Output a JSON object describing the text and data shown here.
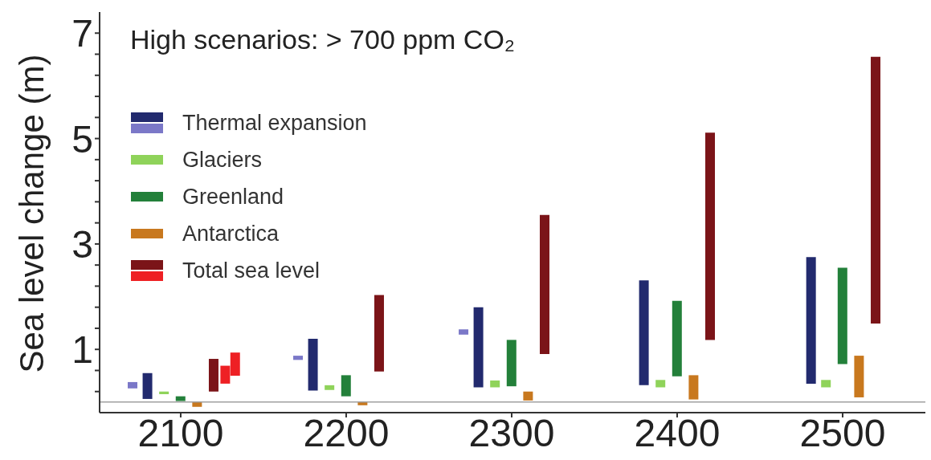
{
  "chart_data": {
    "type": "bar",
    "title": "High scenarios: > 700 ppm CO₂",
    "ylabel": "Sea level change (m)",
    "xlim": [
      2051,
      2550
    ],
    "xticks": [
      2100,
      2200,
      2300,
      2400,
      2500
    ],
    "ylim": [
      -0.2,
      7.4
    ],
    "yticks": [
      {
        "value": 0.2,
        "label": null
      },
      {
        "value": 0.6,
        "label": null
      },
      1,
      {
        "value": 1.4,
        "label": null
      },
      {
        "value": 1.8,
        "label": null
      },
      {
        "value": 2.2,
        "label": null
      },
      {
        "value": 2.6,
        "label": null
      },
      3,
      {
        "value": 3.4,
        "label": null
      },
      {
        "value": 3.8,
        "label": null
      },
      {
        "value": 4.2,
        "label": null
      },
      {
        "value": 4.6,
        "label": null
      },
      5,
      {
        "value": 5.4,
        "label": null
      },
      {
        "value": 5.8,
        "label": null
      },
      {
        "value": 6.2,
        "label": null
      },
      {
        "value": 6.6,
        "label": null
      },
      7
    ],
    "grid": false,
    "legend": "top left",
    "ref_lines": [
      {
        "axis": "y",
        "value": 0,
        "color": "#a0a0a0"
      }
    ],
    "series": [
      {
        "name": "Thermal expansion",
        "color": "#222a6e",
        "colors": [
          "#7b78c8",
          "#222a6e",
          "#7b78c8",
          "#222a6e",
          "#7b78c8",
          "#222a6e",
          "#222a6e",
          "#222a6e"
        ],
        "x": [
          2071,
          2080,
          2171,
          2180,
          2271,
          2280,
          2380,
          2481
        ],
        "base": [
          0.26,
          0.06,
          0.8,
          0.22,
          1.28,
          0.28,
          0.32,
          0.35
        ],
        "values": [
          0.12,
          0.49,
          0.08,
          0.98,
          0.1,
          1.52,
          1.99,
          2.4
        ]
      },
      {
        "name": "Glaciers",
        "color": "#8fd35a",
        "x": [
          2090,
          2190,
          2290,
          2390,
          2490
        ],
        "base": [
          0.15,
          0.23,
          0.28,
          0.28,
          0.28
        ],
        "values": [
          0.05,
          0.09,
          0.13,
          0.14,
          0.14
        ]
      },
      {
        "name": "Greenland",
        "color": "#23803a",
        "x": [
          2100,
          2200,
          2300,
          2400,
          2500
        ],
        "base": [
          0.02,
          0.11,
          0.3,
          0.49,
          0.72
        ],
        "values": [
          0.09,
          0.4,
          0.88,
          1.43,
          1.83
        ]
      },
      {
        "name": "Antarctica",
        "color": "#c8781e",
        "x": [
          2110,
          2210,
          2310,
          2410,
          2510
        ],
        "base": [
          -0.09,
          -0.06,
          0.03,
          0.05,
          0.09
        ],
        "values": [
          0.09,
          0.06,
          0.17,
          0.46,
          0.79
        ]
      },
      {
        "name": "Total sea level",
        "color": "#7b1418",
        "colors": [
          "#7b1418",
          "#ee2024",
          "#ee2024",
          "#7b1418",
          "#7b1418",
          "#7b1418",
          "#7b1418"
        ],
        "x": [
          2120,
          2127,
          2133,
          2220,
          2320,
          2420,
          2520
        ],
        "base": [
          0.2,
          0.35,
          0.5,
          0.58,
          0.91,
          1.18,
          1.49
        ],
        "values": [
          0.62,
          0.34,
          0.44,
          1.45,
          2.64,
          3.93,
          5.06
        ]
      }
    ]
  }
}
